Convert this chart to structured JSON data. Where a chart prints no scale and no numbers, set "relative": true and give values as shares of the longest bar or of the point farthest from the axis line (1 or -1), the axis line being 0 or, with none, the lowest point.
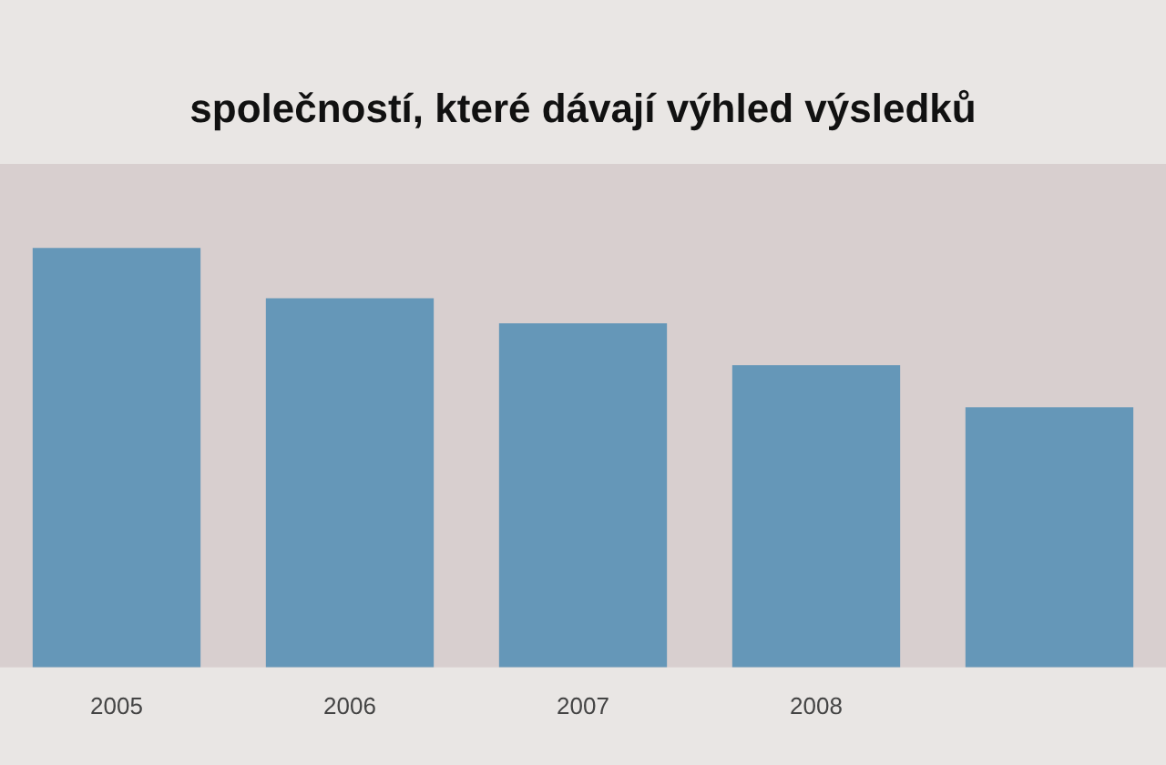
{
  "chart_data": {
    "type": "bar",
    "title": "společností, které dávají výhled výsledků",
    "categories": [
      "2005",
      "2006",
      "2007",
      "2008",
      null
    ],
    "series": [
      {
        "color": "#6597b8",
        "values": [
          1,
          0.88,
          0.82,
          0.72,
          0.62
        ]
      }
    ],
    "relative": true,
    "legend": false
  }
}
